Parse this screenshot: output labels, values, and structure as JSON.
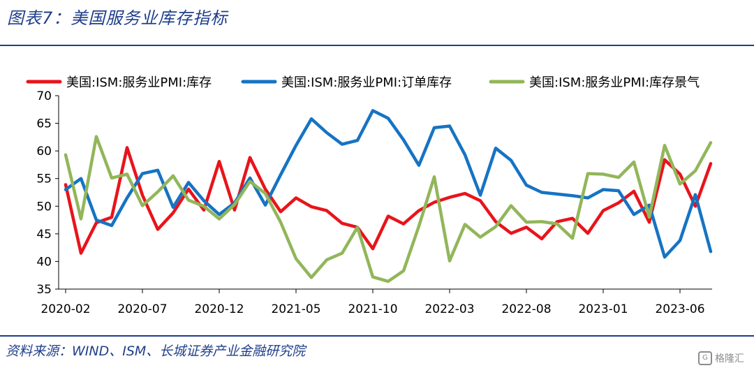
{
  "header": {
    "title": "图表7：美国服务业库存指标"
  },
  "footer": {
    "source": "资料来源：WIND、ISM、长城证券产业金融研究院",
    "watermark": "格隆汇"
  },
  "chart_data": {
    "type": "line",
    "title": "",
    "xlabel": "",
    "ylabel": "",
    "ylim": [
      35,
      70
    ],
    "yticks": [
      35,
      40,
      45,
      50,
      55,
      60,
      65,
      70
    ],
    "xtick_labels": [
      "2020-02",
      "2020-07",
      "2020-12",
      "2021-05",
      "2021-10",
      "2022-03",
      "2022-08",
      "2023-01",
      "2023-06"
    ],
    "x": [
      "2020-02",
      "2020-03",
      "2020-04",
      "2020-05",
      "2020-06",
      "2020-07",
      "2020-08",
      "2020-09",
      "2020-10",
      "2020-11",
      "2020-12",
      "2021-01",
      "2021-02",
      "2021-03",
      "2021-04",
      "2021-05",
      "2021-06",
      "2021-07",
      "2021-08",
      "2021-09",
      "2021-10",
      "2021-11",
      "2021-12",
      "2022-01",
      "2022-02",
      "2022-03",
      "2022-04",
      "2022-05",
      "2022-06",
      "2022-07",
      "2022-08",
      "2022-09",
      "2022-10",
      "2022-11",
      "2022-12",
      "2023-01",
      "2023-02",
      "2023-03",
      "2023-04",
      "2023-05",
      "2023-06",
      "2023-07",
      "2023-08"
    ],
    "legend_position": "top",
    "grid": false,
    "series": [
      {
        "name": "美国:ISM:服务业PMI:库存",
        "color": "#e8141b",
        "values": [
          53.9,
          41.5,
          47.0,
          48.0,
          60.6,
          52.0,
          45.8,
          48.8,
          53.1,
          49.3,
          58.1,
          49.3,
          58.8,
          53.1,
          49.0,
          51.5,
          49.9,
          49.2,
          46.9,
          46.2,
          42.3,
          48.2,
          46.8,
          49.2,
          50.7,
          51.6,
          52.3,
          51.0,
          47.2,
          45.1,
          46.2,
          44.1,
          47.2,
          47.8,
          45.1,
          49.2,
          50.6,
          52.7,
          47.1,
          58.4,
          55.8,
          50.0,
          57.7
        ]
      },
      {
        "name": "美国:ISM:服务业PMI:订单库存",
        "color": "#1673c3",
        "values": [
          53.0,
          55.0,
          47.5,
          46.5,
          51.5,
          55.9,
          56.5,
          49.8,
          54.3,
          51.0,
          48.5,
          50.6,
          55.1,
          50.2,
          55.7,
          61.0,
          65.8,
          63.3,
          61.2,
          61.9,
          67.3,
          65.9,
          62.0,
          57.4,
          64.2,
          64.5,
          59.3,
          52.0,
          60.5,
          58.3,
          53.8,
          52.5,
          52.2,
          51.9,
          51.5,
          53.0,
          52.8,
          48.5,
          50.2,
          40.8,
          43.8,
          52.1,
          41.8
        ]
      },
      {
        "name": "美国:ISM:服务业PMI:库存景气",
        "color": "#92b65a",
        "values": [
          59.3,
          47.7,
          62.6,
          55.1,
          55.8,
          50.1,
          52.6,
          55.5,
          51.1,
          50.0,
          47.7,
          50.3,
          54.5,
          52.3,
          47.1,
          40.5,
          37.1,
          40.3,
          41.5,
          46.2,
          37.2,
          36.4,
          38.3,
          46.4,
          55.3,
          40.1,
          46.7,
          44.4,
          46.3,
          50.1,
          47.1,
          47.2,
          46.8,
          44.2,
          55.9,
          55.8,
          55.2,
          58.0,
          48.0,
          61.0,
          54.0,
          56.4,
          61.5
        ]
      }
    ]
  }
}
